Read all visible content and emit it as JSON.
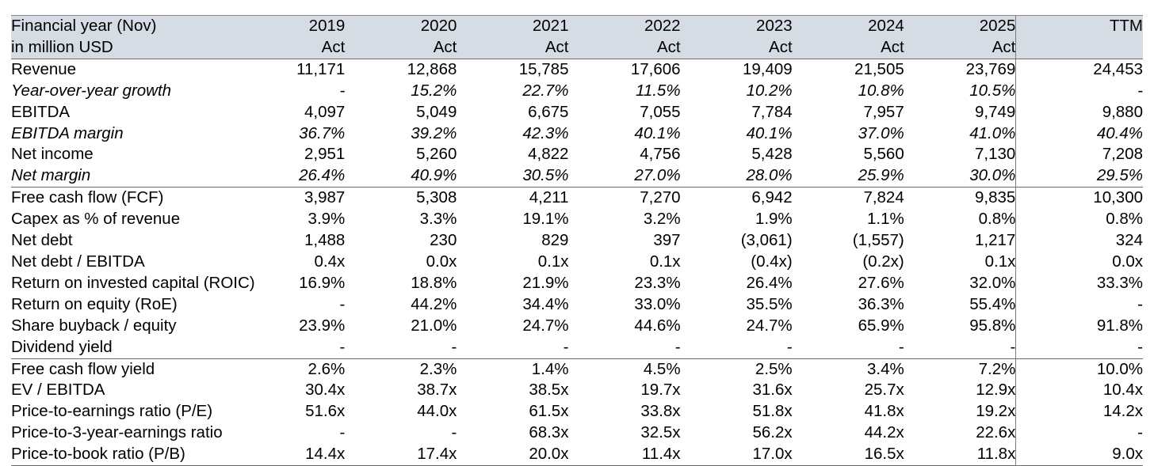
{
  "table": {
    "header": {
      "title": "Financial year (Nov)",
      "subtitle": "in million USD",
      "years": [
        "2019",
        "2020",
        "2021",
        "2022",
        "2023",
        "2024",
        "2025",
        "TTM"
      ],
      "types": [
        "Act",
        "Act",
        "Act",
        "Act",
        "Act",
        "Act",
        "Act",
        ""
      ]
    },
    "rows": [
      {
        "label": "Revenue",
        "values": [
          "11,171",
          "12,868",
          "15,785",
          "17,606",
          "19,409",
          "21,505",
          "23,769",
          "24,453"
        ]
      },
      {
        "label": "Year-over-year growth",
        "values": [
          "-",
          "15.2%",
          "22.7%",
          "11.5%",
          "10.2%",
          "10.8%",
          "10.5%",
          "-"
        ]
      },
      {
        "label": "EBITDA",
        "values": [
          "4,097",
          "5,049",
          "6,675",
          "7,055",
          "7,784",
          "7,957",
          "9,749",
          "9,880"
        ]
      },
      {
        "label": "EBITDA margin",
        "values": [
          "36.7%",
          "39.2%",
          "42.3%",
          "40.1%",
          "40.1%",
          "37.0%",
          "41.0%",
          "40.4%"
        ]
      },
      {
        "label": "Net income",
        "values": [
          "2,951",
          "5,260",
          "4,822",
          "4,756",
          "5,428",
          "5,560",
          "7,130",
          "7,208"
        ]
      },
      {
        "label": "Net margin",
        "values": [
          "26.4%",
          "40.9%",
          "30.5%",
          "27.0%",
          "28.0%",
          "25.9%",
          "30.0%",
          "29.5%"
        ]
      },
      {
        "label": "Free cash flow (FCF)",
        "values": [
          "3,987",
          "5,308",
          "4,211",
          "7,270",
          "6,942",
          "7,824",
          "9,835",
          "10,300"
        ]
      },
      {
        "label": "Capex as % of revenue",
        "values": [
          "3.9%",
          "3.3%",
          "19.1%",
          "3.2%",
          "1.9%",
          "1.1%",
          "0.8%",
          "0.8%"
        ]
      },
      {
        "label": "Net debt",
        "values": [
          "1,488",
          "230",
          "829",
          "397",
          "(3,061)",
          "(1,557)",
          "1,217",
          "324"
        ]
      },
      {
        "label": "Net debt / EBITDA",
        "values": [
          "0.4x",
          "0.0x",
          "0.1x",
          "0.1x",
          "(0.4x)",
          "(0.2x)",
          "0.1x",
          "0.0x"
        ]
      },
      {
        "label": "Return on invested capital (ROIC)",
        "values": [
          "16.9%",
          "18.8%",
          "21.9%",
          "23.3%",
          "26.4%",
          "27.6%",
          "32.0%",
          "33.3%"
        ]
      },
      {
        "label": "Return on equity (RoE)",
        "values": [
          "-",
          "44.2%",
          "34.4%",
          "33.0%",
          "35.5%",
          "36.3%",
          "55.4%",
          "-"
        ]
      },
      {
        "label": "Share buyback / equity",
        "values": [
          "23.9%",
          "21.0%",
          "24.7%",
          "44.6%",
          "24.7%",
          "65.9%",
          "95.8%",
          "91.8%"
        ]
      },
      {
        "label": "Dividend yield",
        "values": [
          "-",
          "-",
          "-",
          "-",
          "-",
          "-",
          "-",
          "-"
        ]
      },
      {
        "label": "Free cash flow yield",
        "values": [
          "2.6%",
          "2.3%",
          "1.4%",
          "4.5%",
          "2.5%",
          "3.4%",
          "7.2%",
          "10.0%"
        ]
      },
      {
        "label": "EV / EBITDA",
        "values": [
          "30.4x",
          "38.7x",
          "38.5x",
          "19.7x",
          "31.6x",
          "25.7x",
          "12.9x",
          "10.4x"
        ]
      },
      {
        "label": "Price-to-earnings ratio (P/E)",
        "values": [
          "51.6x",
          "44.0x",
          "61.5x",
          "33.8x",
          "51.8x",
          "41.8x",
          "19.2x",
          "14.2x"
        ]
      },
      {
        "label": "Price-to-3-year-earnings ratio",
        "values": [
          "-",
          "-",
          "68.3x",
          "32.5x",
          "56.2x",
          "44.2x",
          "22.6x",
          "-"
        ]
      },
      {
        "label": "Price-to-book ratio (P/B)",
        "values": [
          "14.4x",
          "17.4x",
          "20.0x",
          "11.4x",
          "17.0x",
          "16.5x",
          "11.8x",
          "9.0x"
        ]
      }
    ]
  }
}
